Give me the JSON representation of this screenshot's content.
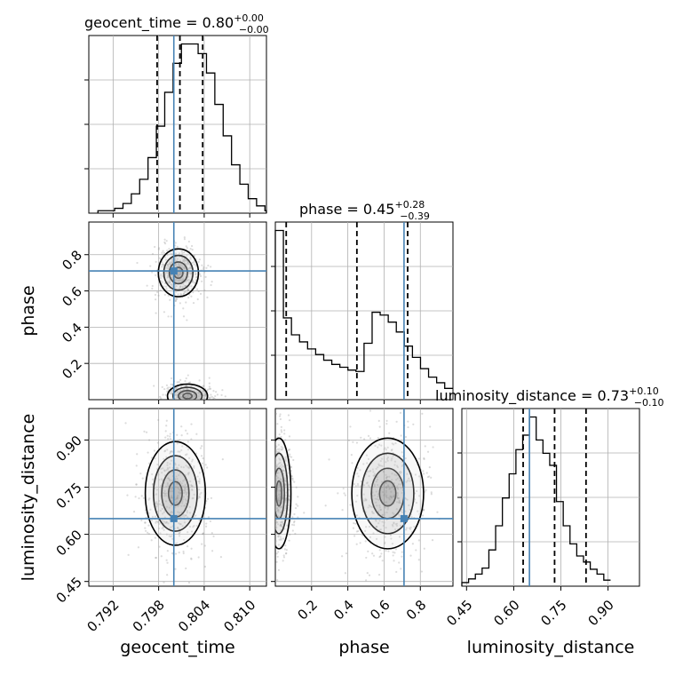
{
  "chart_data": {
    "type": "corner",
    "parameters": [
      "geocent_time",
      "phase",
      "luminosity_distance"
    ],
    "truths": {
      "geocent_time": 0.8,
      "phase": 0.71,
      "luminosity_distance": 0.65
    },
    "titles": [
      {
        "param": "geocent_time",
        "text": "geocent_time = 0.80",
        "plus": "+0.00",
        "minus": "−0.00"
      },
      {
        "param": "phase",
        "text": "phase = 0.45",
        "plus": "+0.28",
        "minus": "−0.39"
      },
      {
        "param": "luminosity_distance",
        "text": "luminosity_distance = 0.73",
        "plus": "+0.10",
        "minus": "−0.10"
      }
    ],
    "axes": {
      "geocent_time": {
        "range": [
          0.7888,
          0.8122
        ],
        "ticks": [
          "0.792",
          "0.798",
          "0.804",
          "0.810"
        ],
        "tick_values": [
          0.792,
          0.798,
          0.804,
          0.81
        ],
        "label": "geocent_time"
      },
      "phase": {
        "range": [
          0.0,
          0.98
        ],
        "ticks": [
          "0.2",
          "0.4",
          "0.6",
          "0.8"
        ],
        "tick_values": [
          0.2,
          0.4,
          0.6,
          0.8
        ],
        "label": "phase"
      },
      "luminosity_distance": {
        "range": [
          0.435,
          1.0
        ],
        "ticks": [
          "0.45",
          "0.60",
          "0.75",
          "0.90"
        ],
        "tick_values": [
          0.45,
          0.6,
          0.75,
          0.9
        ],
        "label": "luminosity_distance"
      }
    },
    "quantiles": {
      "geocent_time": [
        0.7978,
        0.8008,
        0.8038
      ],
      "phase": [
        0.06,
        0.45,
        0.73
      ],
      "luminosity_distance": [
        0.63,
        0.73,
        0.83
      ]
    },
    "histograms": {
      "geocent_time": {
        "x0": 0.79,
        "dx": 0.0011,
        "counts": [
          1,
          1,
          2,
          4,
          8,
          14,
          23,
          36,
          50,
          62,
          70,
          70,
          66,
          58,
          45,
          32,
          20,
          12,
          6,
          3,
          1,
          0
        ]
      },
      "phase": {
        "x0": 0.0,
        "dx": 0.0445,
        "counts": [
          120,
          58,
          46,
          41,
          36,
          32,
          28,
          25,
          23,
          21,
          20,
          40,
          62,
          60,
          55,
          48,
          38,
          30,
          22,
          16,
          12,
          8
        ]
      },
      "luminosity_distance": {
        "x0": 0.435,
        "dx": 0.0215,
        "counts": [
          3,
          6,
          10,
          15,
          30,
          50,
          73,
          93,
          113,
          125,
          140,
          121,
          110,
          100,
          70,
          50,
          35,
          25,
          20,
          14,
          10,
          5
        ]
      }
    },
    "contours_2d": [
      {
        "x": "geocent_time",
        "y": "phase",
        "modes": [
          {
            "cx": 0.8006,
            "cy": 0.7,
            "sx": 0.0012,
            "sy": 0.06
          },
          {
            "cx": 0.8018,
            "cy": 0.02,
            "sx": 0.0012,
            "sy": 0.03
          }
        ]
      },
      {
        "x": "geocent_time",
        "y": "luminosity_distance",
        "modes": [
          {
            "cx": 0.8002,
            "cy": 0.73,
            "sx": 0.0018,
            "sy": 0.075
          }
        ]
      },
      {
        "x": "phase",
        "y": "luminosity_distance",
        "modes": [
          {
            "cx": 0.02,
            "cy": 0.73,
            "sx": 0.03,
            "sy": 0.08
          },
          {
            "cx": 0.62,
            "cy": 0.73,
            "sx": 0.09,
            "sy": 0.08
          }
        ]
      }
    ],
    "colors": {
      "hist": "#000000",
      "truth": "#4682b4",
      "points": "#9a9a9a"
    }
  }
}
